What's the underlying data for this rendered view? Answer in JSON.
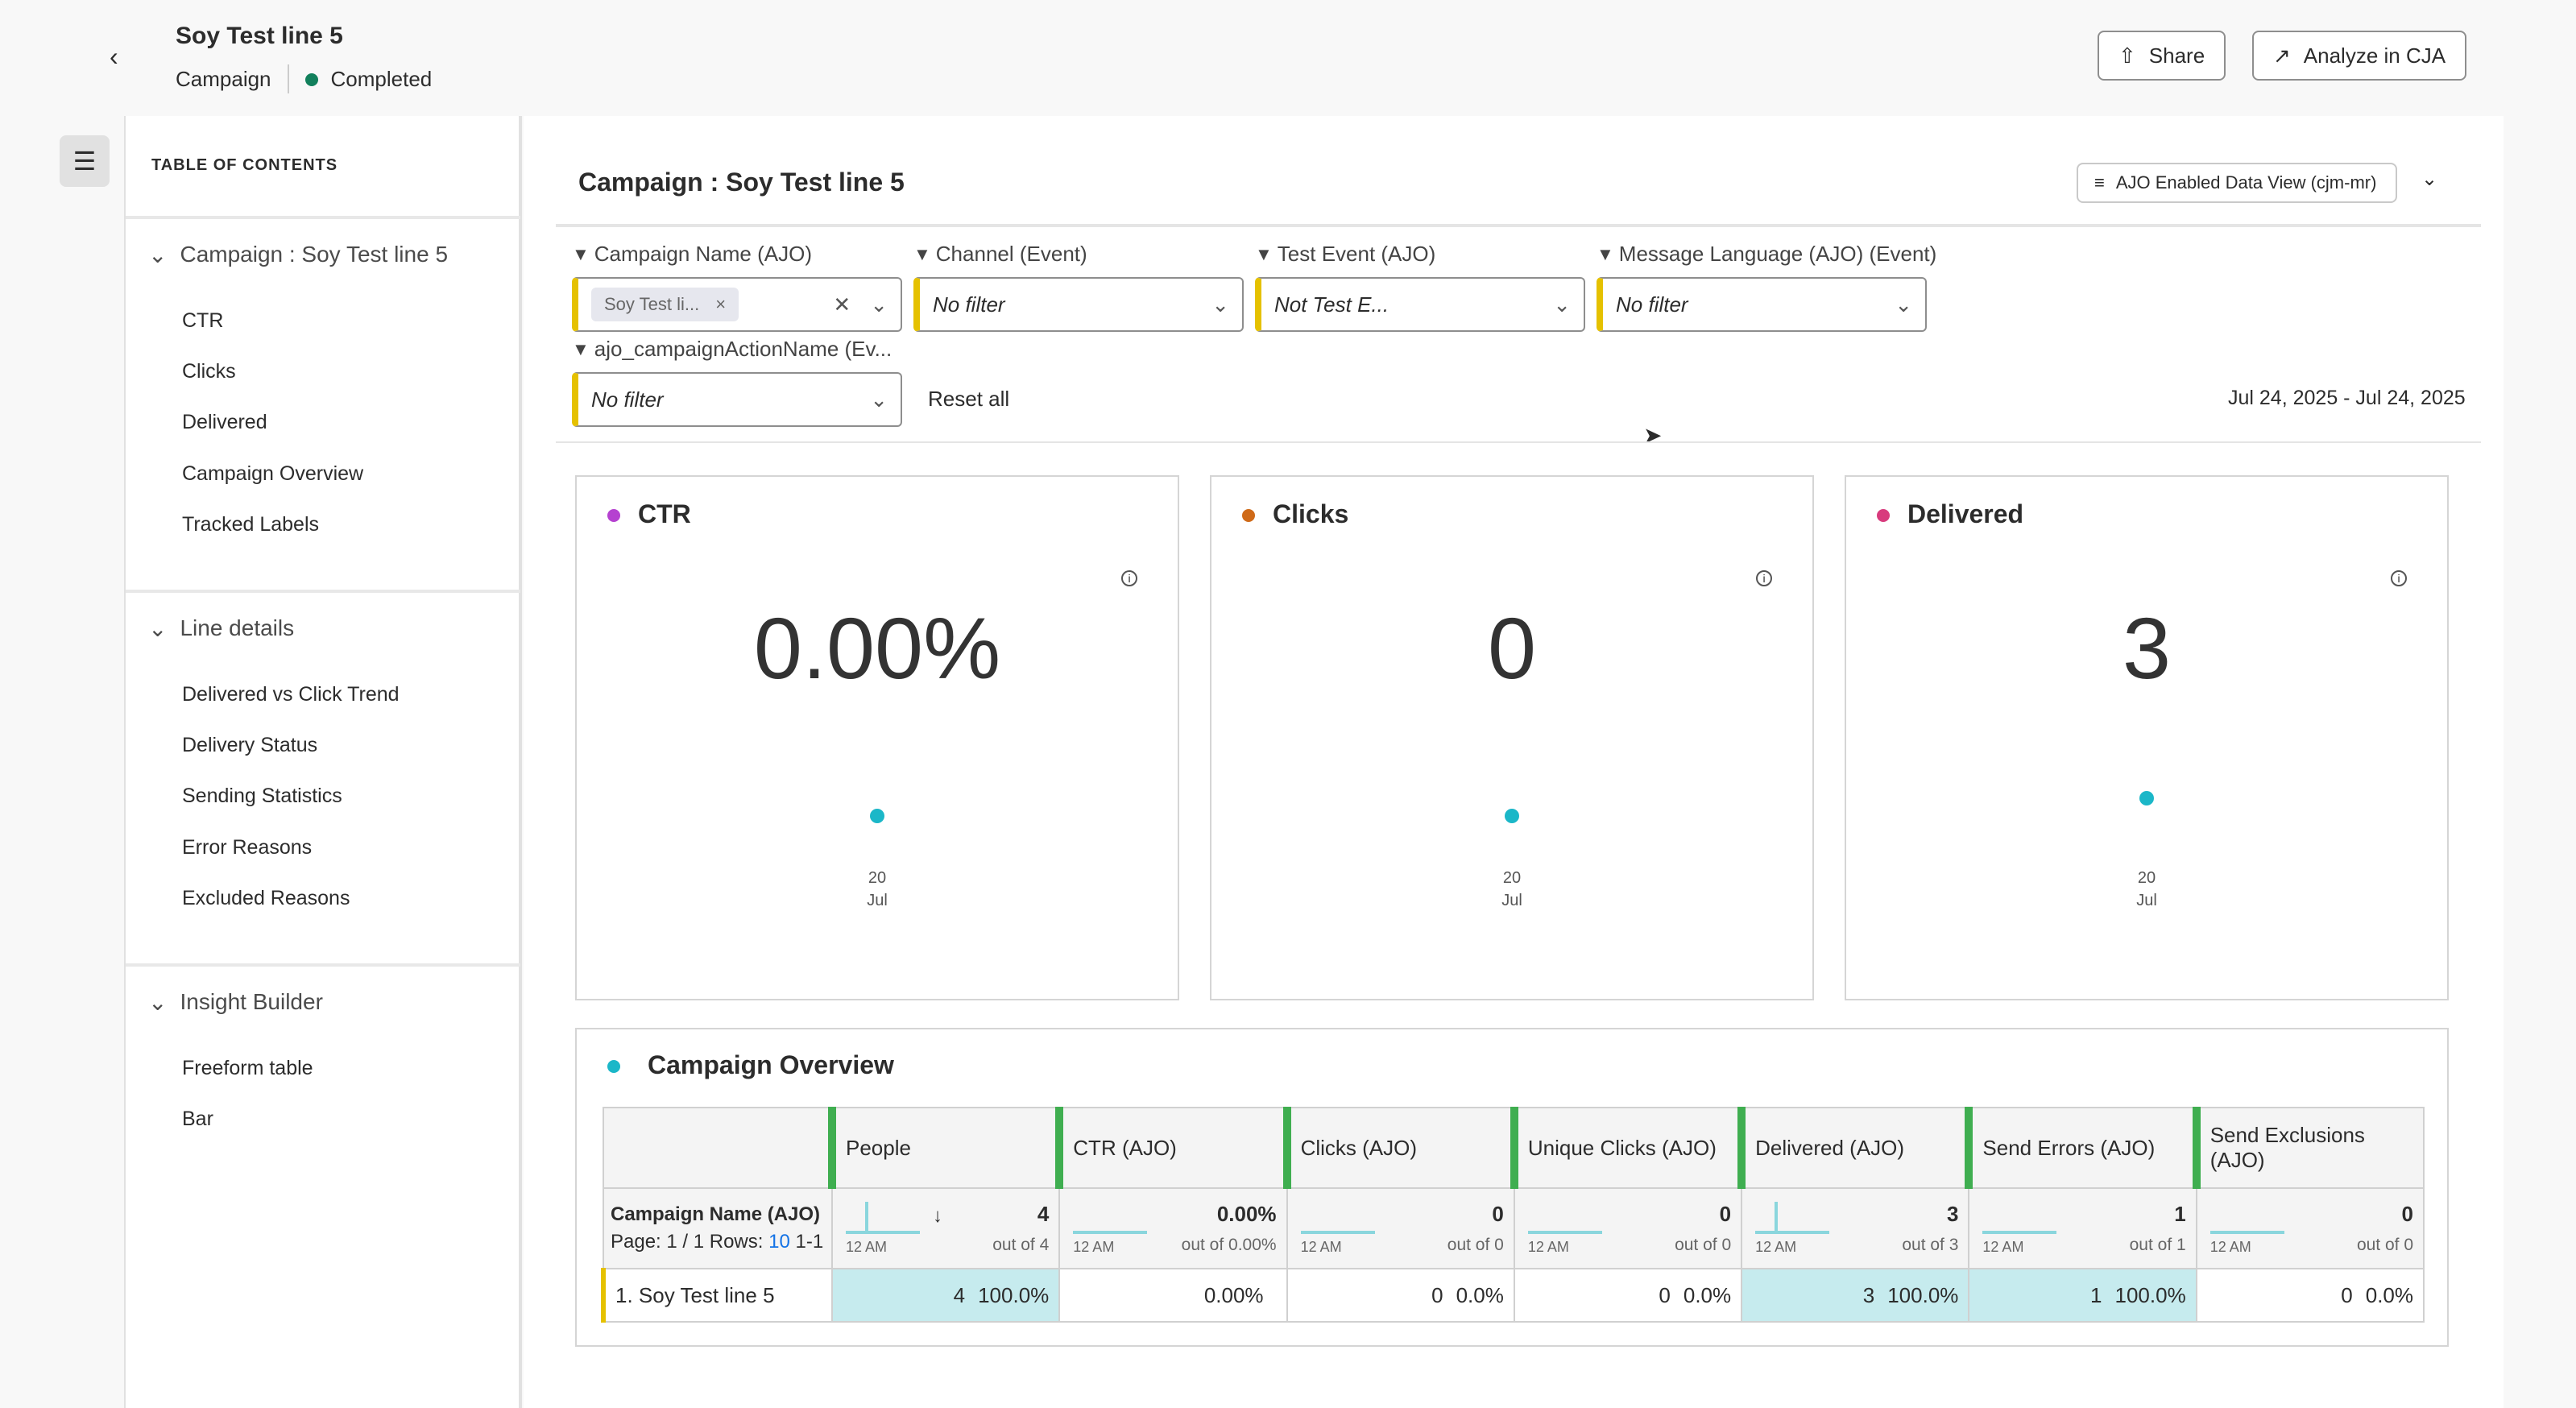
{
  "header": {
    "title": "Soy Test line 5",
    "type": "Campaign",
    "status": "Completed",
    "share": "Share",
    "analyze": "Analyze in CJA"
  },
  "toc": {
    "title": "TABLE OF CONTENTS",
    "sections": [
      {
        "label": "Campaign : Soy Test line 5",
        "items": [
          "CTR",
          "Clicks",
          "Delivered",
          "Campaign Overview",
          "Tracked Labels"
        ]
      },
      {
        "label": "Line details",
        "items": [
          "Delivered vs Click Trend",
          "Delivery Status",
          "Sending Statistics",
          "Error Reasons",
          "Excluded Reasons"
        ]
      },
      {
        "label": "Insight Builder",
        "items": [
          "Freeform table",
          "Bar"
        ]
      }
    ]
  },
  "panel": {
    "title": "Campaign : Soy Test line 5",
    "data_view": "AJO Enabled Data View (cjm-mr)",
    "date_range": "Jul 24, 2025 - Jul 24, 2025",
    "reset": "Reset all"
  },
  "filters": [
    {
      "label": "Campaign Name (AJO)",
      "value": "Soy Test li..."
    },
    {
      "label": "Channel (Event)",
      "value": "No filter"
    },
    {
      "label": "Test Event (AJO)",
      "value": "Not Test E..."
    },
    {
      "label": "Message Language (AJO) (Event)",
      "value": "No filter"
    },
    {
      "label": "ajo_campaignActionName (Ev...",
      "value": "No filter"
    }
  ],
  "cards": [
    {
      "title": "CTR",
      "value": "0.00%",
      "day": "20",
      "month": "Jul",
      "color": "#b541d0"
    },
    {
      "title": "Clicks",
      "value": "0",
      "day": "20",
      "month": "Jul",
      "color": "#cf6a18"
    },
    {
      "title": "Delivered",
      "value": "3",
      "day": "20",
      "month": "Jul",
      "color": "#d83b7d"
    }
  ],
  "overview": {
    "title": "Campaign Overview",
    "dim": "Campaign Name (AJO)",
    "page": "Page: 1 / 1 Rows:",
    "rows_n": "10",
    "range": "1-1",
    "axis": "12 AM",
    "columns": [
      {
        "name": "People",
        "total": "4",
        "of": "out of 4",
        "val": "4",
        "pct": "100.0%"
      },
      {
        "name": "CTR (AJO)",
        "total": "0.00%",
        "of": "out of 0.00%",
        "val": "0.00%",
        "pct": ""
      },
      {
        "name": "Clicks (AJO)",
        "total": "0",
        "of": "out of 0",
        "val": "0",
        "pct": "0.0%"
      },
      {
        "name": "Unique Clicks (AJO)",
        "total": "0",
        "of": "out of 0",
        "val": "0",
        "pct": "0.0%"
      },
      {
        "name": "Delivered (AJO)",
        "total": "3",
        "of": "out of 3",
        "val": "3",
        "pct": "100.0%"
      },
      {
        "name": "Send Errors (AJO)",
        "total": "1",
        "of": "out of 1",
        "val": "1",
        "pct": "100.0%"
      },
      {
        "name": "Send Exclusions (AJO)",
        "total": "0",
        "of": "out of 0",
        "val": "0",
        "pct": "0.0%"
      }
    ],
    "row_label": "1.  Soy Test line 5"
  }
}
